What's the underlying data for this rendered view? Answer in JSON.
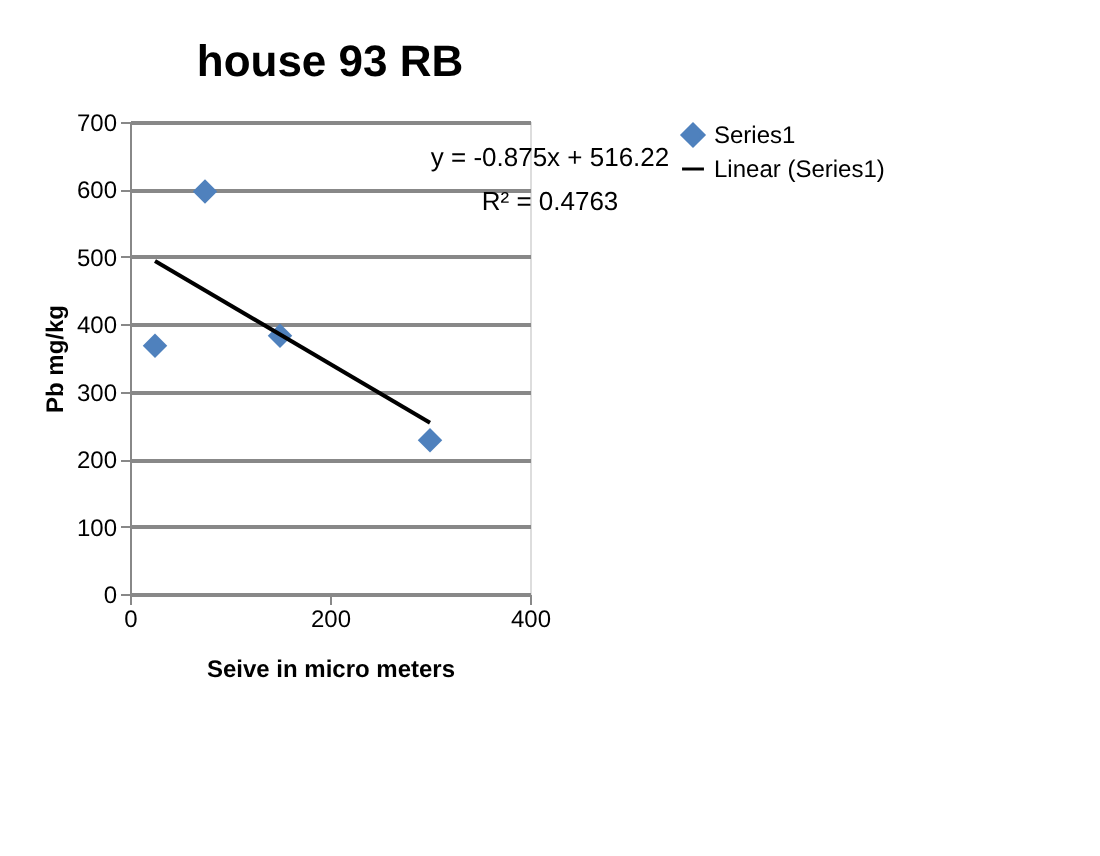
{
  "chart_data": {
    "type": "scatter",
    "title": "house 93 RB",
    "xlabel": "Seive in micro meters",
    "ylabel": "Pb mg/kg",
    "series": [
      {
        "name": "Series1",
        "type": "scatter",
        "color": "#4f81bd",
        "marker": "diamond",
        "x": [
          25,
          75,
          150,
          300
        ],
        "values": [
          368,
          597,
          383,
          228
        ]
      },
      {
        "name": "Linear (Series1)",
        "type": "line",
        "color": "#000000",
        "marker": "none",
        "x": [
          25,
          300
        ],
        "values": [
          494,
          254
        ]
      }
    ],
    "xlim": [
      0,
      400
    ],
    "xticks": [
      0,
      200,
      400
    ],
    "ylim": [
      0,
      700
    ],
    "yticks": [
      0,
      100,
      200,
      300,
      400,
      500,
      600,
      700
    ],
    "grid": "y",
    "legend": "right",
    "annotations": [
      "y = -0.875x + 516.22",
      "R² = 0.4763"
    ]
  }
}
